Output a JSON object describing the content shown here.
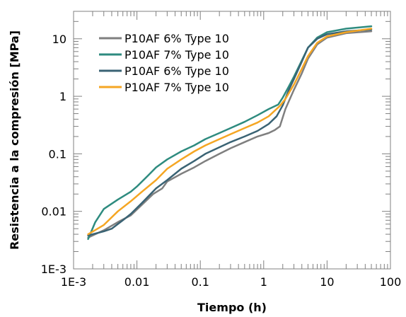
{
  "chart_data": {
    "type": "line",
    "xlabel": "Tiempo (h)",
    "ylabel": "Resistencia a la compresión [MPa]",
    "xscale": "log",
    "yscale": "log",
    "xlim": [
      0.001,
      100
    ],
    "ylim": [
      0.001,
      30
    ],
    "xticks": [
      {
        "value": 0.001,
        "label": "1E-3"
      },
      {
        "value": 0.01,
        "label": "0.01"
      },
      {
        "value": 0.1,
        "label": "0.1"
      },
      {
        "value": 1,
        "label": "1"
      },
      {
        "value": 10,
        "label": "10"
      },
      {
        "value": 100,
        "label": "100"
      }
    ],
    "yticks": [
      {
        "value": 0.001,
        "label": "1E-3"
      },
      {
        "value": 0.01,
        "label": "0.01"
      },
      {
        "value": 0.1,
        "label": "0.1"
      },
      {
        "value": 1,
        "label": "1"
      },
      {
        "value": 10,
        "label": "10"
      }
    ],
    "grid": false,
    "legend_position": "top-left",
    "series": [
      {
        "name": "P10AF 6% Type 10",
        "color": "#7f7f7f",
        "points": [
          [
            0.0017,
            0.0035
          ],
          [
            0.003,
            0.0047
          ],
          [
            0.005,
            0.0065
          ],
          [
            0.008,
            0.0085
          ],
          [
            0.012,
            0.013
          ],
          [
            0.018,
            0.02
          ],
          [
            0.025,
            0.025
          ],
          [
            0.03,
            0.033
          ],
          [
            0.05,
            0.045
          ],
          [
            0.08,
            0.058
          ],
          [
            0.12,
            0.075
          ],
          [
            0.2,
            0.1
          ],
          [
            0.3,
            0.125
          ],
          [
            0.5,
            0.16
          ],
          [
            0.8,
            0.2
          ],
          [
            1.2,
            0.23
          ],
          [
            1.5,
            0.26
          ],
          [
            1.8,
            0.3
          ],
          [
            2.2,
            0.6
          ],
          [
            3,
            1.3
          ],
          [
            4,
            2.5
          ],
          [
            5,
            4.5
          ],
          [
            7,
            8
          ],
          [
            10,
            10.5
          ],
          [
            20,
            12.5
          ],
          [
            50,
            13.5
          ]
        ]
      },
      {
        "name": "P10AF 7% Type 10",
        "color": "#2e8b7f",
        "points": [
          [
            0.0017,
            0.0033
          ],
          [
            0.0022,
            0.0065
          ],
          [
            0.003,
            0.011
          ],
          [
            0.005,
            0.016
          ],
          [
            0.008,
            0.022
          ],
          [
            0.01,
            0.027
          ],
          [
            0.015,
            0.042
          ],
          [
            0.02,
            0.058
          ],
          [
            0.03,
            0.08
          ],
          [
            0.05,
            0.11
          ],
          [
            0.08,
            0.14
          ],
          [
            0.12,
            0.18
          ],
          [
            0.2,
            0.23
          ],
          [
            0.3,
            0.28
          ],
          [
            0.5,
            0.36
          ],
          [
            0.8,
            0.47
          ],
          [
            1.2,
            0.6
          ],
          [
            1.7,
            0.72
          ],
          [
            2,
            0.95
          ],
          [
            2.5,
            1.5
          ],
          [
            3,
            2.2
          ],
          [
            4,
            4.2
          ],
          [
            5,
            7
          ],
          [
            7,
            10.5
          ],
          [
            10,
            13
          ],
          [
            20,
            15
          ],
          [
            50,
            16.5
          ]
        ]
      },
      {
        "name": "P10AF 6% Type 10",
        "color": "#3a6374",
        "points": [
          [
            0.0017,
            0.0038
          ],
          [
            0.002,
            0.004
          ],
          [
            0.003,
            0.0045
          ],
          [
            0.004,
            0.005
          ],
          [
            0.006,
            0.007
          ],
          [
            0.008,
            0.009
          ],
          [
            0.012,
            0.014
          ],
          [
            0.02,
            0.025
          ],
          [
            0.03,
            0.035
          ],
          [
            0.05,
            0.055
          ],
          [
            0.08,
            0.075
          ],
          [
            0.12,
            0.1
          ],
          [
            0.2,
            0.13
          ],
          [
            0.3,
            0.16
          ],
          [
            0.5,
            0.2
          ],
          [
            0.8,
            0.25
          ],
          [
            1.2,
            0.33
          ],
          [
            1.6,
            0.45
          ],
          [
            2,
            0.7
          ],
          [
            2.5,
            1.3
          ],
          [
            3,
            2
          ],
          [
            4,
            4
          ],
          [
            5,
            7
          ],
          [
            7,
            10
          ],
          [
            10,
            12
          ],
          [
            20,
            13.5
          ],
          [
            50,
            14.5
          ]
        ]
      },
      {
        "name": "P10AF 7% Type 10",
        "color": "#f5a623",
        "points": [
          [
            0.0017,
            0.004
          ],
          [
            0.003,
            0.0058
          ],
          [
            0.005,
            0.01
          ],
          [
            0.008,
            0.015
          ],
          [
            0.012,
            0.022
          ],
          [
            0.02,
            0.035
          ],
          [
            0.03,
            0.055
          ],
          [
            0.05,
            0.08
          ],
          [
            0.08,
            0.11
          ],
          [
            0.12,
            0.14
          ],
          [
            0.2,
            0.18
          ],
          [
            0.3,
            0.22
          ],
          [
            0.5,
            0.28
          ],
          [
            0.8,
            0.35
          ],
          [
            1.2,
            0.45
          ],
          [
            1.8,
            0.68
          ],
          [
            2.2,
            0.9
          ],
          [
            3,
            1.6
          ],
          [
            4,
            3
          ],
          [
            5,
            5
          ],
          [
            7,
            8.5
          ],
          [
            10,
            11
          ],
          [
            20,
            13
          ],
          [
            50,
            15
          ]
        ]
      }
    ]
  }
}
